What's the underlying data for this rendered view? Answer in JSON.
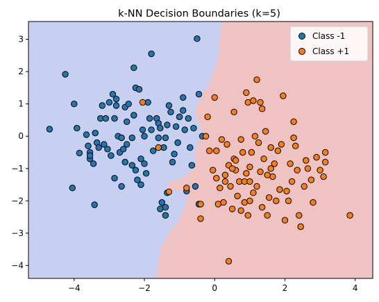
{
  "chart_data": {
    "type": "scatter",
    "title": "k-NN Decision Boundaries (k=5)",
    "xlabel": "",
    "ylabel": "",
    "xlim": [
      -5.3,
      4.5
    ],
    "ylim": [
      -4.4,
      3.55
    ],
    "xticks": [
      -4,
      -2,
      0,
      2,
      4
    ],
    "yticks": [
      -4,
      -3,
      -2,
      -1,
      0,
      1,
      2,
      3
    ],
    "grid": false,
    "legend_position": "top-right",
    "region_colors": {
      "class_minus": "#c7d0f1",
      "class_plus": "#efc3c1"
    },
    "boundary": [
      [
        0.2,
        3.55
      ],
      [
        0.15,
        3.1
      ],
      [
        0.12,
        2.6
      ],
      [
        0.05,
        2.2
      ],
      [
        -0.1,
        1.85
      ],
      [
        -0.15,
        1.6
      ],
      [
        -0.3,
        1.4
      ],
      [
        -0.4,
        1.2
      ],
      [
        -0.55,
        0.8
      ],
      [
        -0.5,
        0.5
      ],
      [
        -0.35,
        0.2
      ],
      [
        -0.45,
        -0.1
      ],
      [
        -0.55,
        -0.55
      ],
      [
        -0.55,
        -0.9
      ],
      [
        -0.65,
        -1.05
      ],
      [
        -0.85,
        -1.25
      ],
      [
        -1.05,
        -1.35
      ],
      [
        -1.3,
        -1.4
      ],
      [
        -1.35,
        -1.55
      ],
      [
        -1.2,
        -1.65
      ],
      [
        -0.95,
        -1.7
      ],
      [
        -0.75,
        -1.8
      ],
      [
        -0.8,
        -2.05
      ],
      [
        -0.9,
        -2.3
      ],
      [
        -1.0,
        -2.6
      ],
      [
        -1.3,
        -3.0
      ],
      [
        -1.5,
        -3.4
      ],
      [
        -1.6,
        -3.8
      ],
      [
        -1.65,
        -4.4
      ]
    ],
    "series": [
      {
        "name": "Class -1",
        "color": "#1f77b4",
        "points": [
          [
            -4.7,
            0.22
          ],
          [
            -4.25,
            1.92
          ],
          [
            -4.05,
            -1.6
          ],
          [
            -4.0,
            1.0
          ],
          [
            -3.92,
            0.25
          ],
          [
            -3.85,
            -0.52
          ],
          [
            -3.65,
            0.05
          ],
          [
            -3.6,
            -0.3
          ],
          [
            -3.55,
            -0.5
          ],
          [
            -3.55,
            -0.7
          ],
          [
            -3.45,
            -0.85
          ],
          [
            -3.4,
            0.1
          ],
          [
            -3.42,
            -2.12
          ],
          [
            -3.35,
            -0.2
          ],
          [
            -3.3,
            -0.35
          ],
          [
            -3.25,
            0.55
          ],
          [
            -3.2,
            0.95
          ],
          [
            -3.15,
            -0.25
          ],
          [
            -3.1,
            0.55
          ],
          [
            -3.05,
            -0.4
          ],
          [
            -3.0,
            1.05
          ],
          [
            -2.95,
            -0.6
          ],
          [
            -2.9,
            1.3
          ],
          [
            -2.85,
            0.55
          ],
          [
            -2.8,
            1.15
          ],
          [
            -2.75,
            0.0
          ],
          [
            -2.7,
            -0.5
          ],
          [
            -2.65,
            -0.05
          ],
          [
            -2.6,
            -0.4
          ],
          [
            -2.55,
            0.9
          ],
          [
            -2.5,
            0.45
          ],
          [
            -2.45,
            1.0
          ],
          [
            -2.5,
            -0.25
          ],
          [
            -2.35,
            -0.05
          ],
          [
            -2.35,
            -0.9
          ],
          [
            -2.3,
            0.65
          ],
          [
            -2.25,
            -1.05
          ],
          [
            -2.2,
            -1.35
          ],
          [
            -2.1,
            -1.5
          ],
          [
            -2.1,
            -0.7
          ],
          [
            -2.05,
            0.2
          ],
          [
            -2.0,
            -0.85
          ],
          [
            -1.95,
            -1.15
          ],
          [
            -1.9,
            1.05
          ],
          [
            -1.85,
            0.55
          ],
          [
            -1.8,
            0.2
          ],
          [
            -1.75,
            -0.45
          ],
          [
            -1.65,
            0.55
          ],
          [
            -1.6,
            0.4
          ],
          [
            -1.55,
            0.25
          ],
          [
            -1.45,
            -0.35
          ],
          [
            -1.4,
            -0.05
          ],
          [
            -1.35,
            0.35
          ],
          [
            -1.3,
            0.95
          ],
          [
            -1.25,
            0.75
          ],
          [
            -1.2,
            -0.8
          ],
          [
            -1.1,
            0.3
          ],
          [
            -1.05,
            -0.2
          ],
          [
            -1.0,
            0.6
          ],
          [
            -0.9,
            1.2
          ],
          [
            -0.9,
            0.8
          ],
          [
            -0.85,
            0.2
          ],
          [
            -0.8,
            -1.7
          ],
          [
            -0.75,
            0.55
          ],
          [
            -0.7,
            -0.35
          ],
          [
            -0.65,
            -0.9
          ],
          [
            -0.6,
            0.25
          ],
          [
            -0.55,
            -1.55
          ],
          [
            -0.45,
            -2.1
          ],
          [
            -0.45,
            1.3
          ],
          [
            -0.35,
            0.0
          ],
          [
            -1.8,
            2.55
          ],
          [
            -2.3,
            2.12
          ],
          [
            -2.25,
            1.5
          ],
          [
            -2.15,
            1.45
          ],
          [
            -2.0,
            0.0
          ],
          [
            -1.55,
            -2.25
          ],
          [
            -1.5,
            -2.05
          ],
          [
            -1.4,
            -2.2
          ],
          [
            -1.4,
            -2.45
          ],
          [
            -1.35,
            -1.75
          ],
          [
            -0.5,
            3.02
          ],
          [
            -1.6,
            -0.05
          ],
          [
            -2.65,
            -1.55
          ],
          [
            -2.85,
            -1.3
          ],
          [
            -2.55,
            -0.8
          ],
          [
            -3.55,
            -0.6
          ],
          [
            -2.8,
            0.95
          ],
          [
            -1.0,
            0.6
          ],
          [
            -1.15,
            -0.55
          ]
        ]
      },
      {
        "name": "Class +1",
        "color": "#ff7f0e",
        "points": [
          [
            -2.05,
            1.05
          ],
          [
            -1.6,
            -0.35
          ],
          [
            -1.3,
            -1.72
          ],
          [
            -0.8,
            -1.6
          ],
          [
            -0.4,
            -2.1
          ],
          [
            -0.4,
            -2.55
          ],
          [
            -0.2,
            0.6
          ],
          [
            -0.25,
            0.0
          ],
          [
            -0.15,
            -0.45
          ],
          [
            -0.05,
            -1.05
          ],
          [
            0.0,
            1.2
          ],
          [
            0.05,
            -0.45
          ],
          [
            0.05,
            -1.3
          ],
          [
            0.1,
            -2.1
          ],
          [
            0.15,
            -1.6
          ],
          [
            0.2,
            -0.1
          ],
          [
            0.25,
            -2.05
          ],
          [
            0.3,
            -1.2
          ],
          [
            0.35,
            -0.25
          ],
          [
            0.4,
            -0.9
          ],
          [
            0.45,
            -1.55
          ],
          [
            0.5,
            -2.25
          ],
          [
            0.55,
            -0.7
          ],
          [
            0.6,
            -1.05
          ],
          [
            0.65,
            -1.85
          ],
          [
            0.7,
            -1.4
          ],
          [
            0.75,
            -0.1
          ],
          [
            0.8,
            -0.5
          ],
          [
            0.85,
            -2.05
          ],
          [
            0.9,
            -1.15
          ],
          [
            0.95,
            -2.45
          ],
          [
            1.0,
            -0.95
          ],
          [
            1.05,
            -0.5
          ],
          [
            1.1,
            -1.75
          ],
          [
            1.15,
            0.0
          ],
          [
            1.2,
            -1.55
          ],
          [
            1.25,
            -0.2
          ],
          [
            1.3,
            -1.1
          ],
          [
            1.35,
            -2.2
          ],
          [
            1.4,
            -0.7
          ],
          [
            1.45,
            0.15
          ],
          [
            1.5,
            -2.45
          ],
          [
            1.55,
            -1.9
          ],
          [
            1.6,
            -0.35
          ],
          [
            1.65,
            -1.25
          ],
          [
            1.7,
            -0.85
          ],
          [
            1.75,
            -2.0
          ],
          [
            1.8,
            -0.45
          ],
          [
            1.85,
            -1.65
          ],
          [
            1.9,
            -0.25
          ],
          [
            1.95,
            1.25
          ],
          [
            2.0,
            -2.6
          ],
          [
            2.05,
            -1.7
          ],
          [
            2.15,
            -0.85
          ],
          [
            2.2,
            -1.4
          ],
          [
            2.25,
            -0.05
          ],
          [
            2.3,
            -0.3
          ],
          [
            2.35,
            -1.05
          ],
          [
            2.4,
            -2.45
          ],
          [
            2.45,
            -2.8
          ],
          [
            2.55,
            -1.55
          ],
          [
            2.6,
            -0.75
          ],
          [
            2.65,
            -1.0
          ],
          [
            2.75,
            -1.35
          ],
          [
            2.8,
            -2.05
          ],
          [
            2.9,
            -0.65
          ],
          [
            3.0,
            -1.05
          ],
          [
            3.1,
            -1.25
          ],
          [
            3.15,
            -0.8
          ],
          [
            3.15,
            -0.5
          ],
          [
            3.85,
            -2.45
          ],
          [
            0.4,
            -3.87
          ],
          [
            0.55,
            0.75
          ],
          [
            0.9,
            1.35
          ],
          [
            0.95,
            1.05
          ],
          [
            1.1,
            1.1
          ],
          [
            1.2,
            1.75
          ],
          [
            1.3,
            1.05
          ],
          [
            1.35,
            0.85
          ],
          [
            0.6,
            -0.75
          ],
          [
            0.75,
            -2.3
          ],
          [
            1.0,
            -2.0
          ],
          [
            0.3,
            -1.4
          ],
          [
            0.5,
            -1.0
          ],
          [
            1.6,
            -1.0
          ],
          [
            2.1,
            -2.0
          ],
          [
            0.85,
            -1.4
          ],
          [
            1.0,
            -1.4
          ],
          [
            1.5,
            -1.2
          ],
          [
            2.25,
            0.45
          ]
        ]
      }
    ]
  }
}
